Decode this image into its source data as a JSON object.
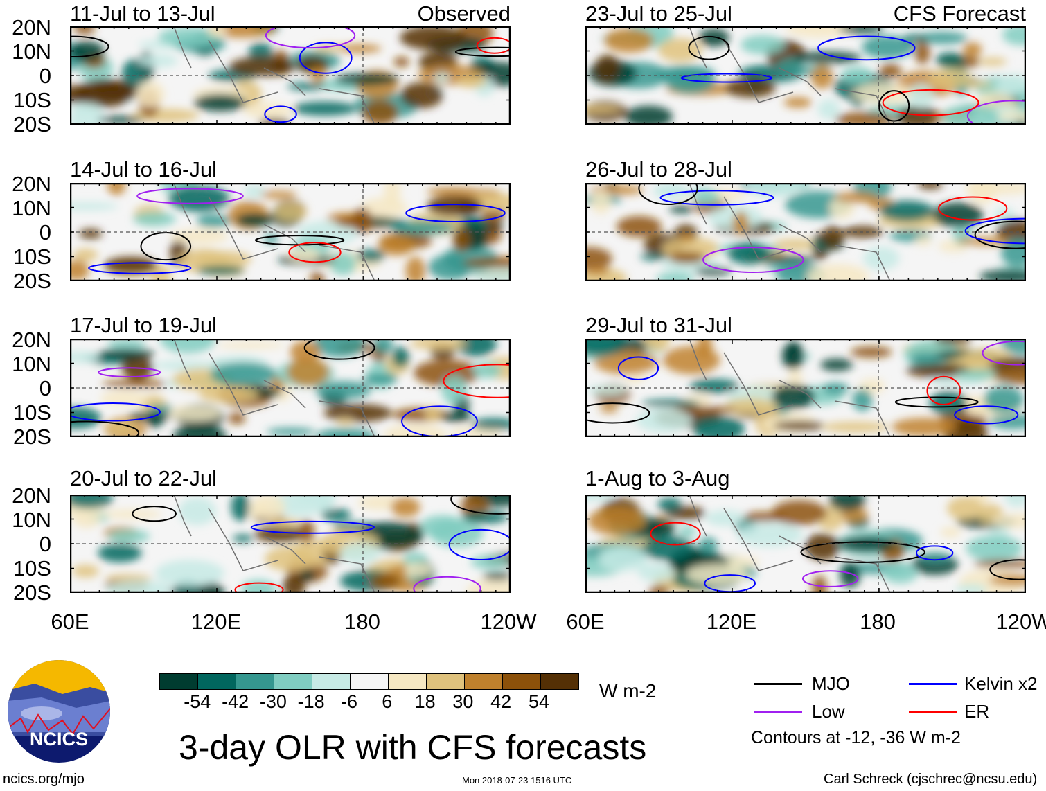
{
  "left_panels": [
    {
      "title": "11-Jul to 13-Jul",
      "label": "Observed"
    },
    {
      "title": "14-Jul to 16-Jul"
    },
    {
      "title": "17-Jul to 19-Jul"
    },
    {
      "title": "20-Jul to 22-Jul"
    }
  ],
  "right_panels": [
    {
      "title": "23-Jul to 25-Jul",
      "label": "CFS Forecast"
    },
    {
      "title": "26-Jul to 28-Jul"
    },
    {
      "title": "29-Jul to 31-Jul"
    },
    {
      "title": "1-Aug to 3-Aug"
    }
  ],
  "lat_labels": [
    "20N",
    "10N",
    "0",
    "10S",
    "20S"
  ],
  "lon_labels": [
    "60E",
    "120E",
    "180",
    "120W"
  ],
  "colorbar": {
    "colors": [
      "#003c30",
      "#01665e",
      "#35978f",
      "#80cdc1",
      "#c7eae5",
      "#f5f5f5",
      "#f6e8c3",
      "#dfc27d",
      "#bf812d",
      "#8c510a",
      "#543005"
    ],
    "ticks": [
      "-54",
      "-42",
      "-30",
      "-18",
      "-6",
      "6",
      "18",
      "30",
      "42",
      "54"
    ],
    "units": "W m-2"
  },
  "title": "3-day OLR with CFS forecasts",
  "legend": {
    "items": [
      {
        "label": "MJO",
        "color": "#000000"
      },
      {
        "label": "Kelvin x2",
        "color": "#0000ff"
      },
      {
        "label": "Low",
        "color": "#a020f0"
      },
      {
        "label": "ER",
        "color": "#ff0000"
      }
    ],
    "note": "Contours at -12, -36 W m-2"
  },
  "logo_text": "NCICS",
  "footer": {
    "url": "ncics.org/mjo",
    "timestamp": "Mon 2018-07-23 1516 UTC",
    "credit": "Carl Schreck (cjschrec@ncsu.edu)"
  }
}
